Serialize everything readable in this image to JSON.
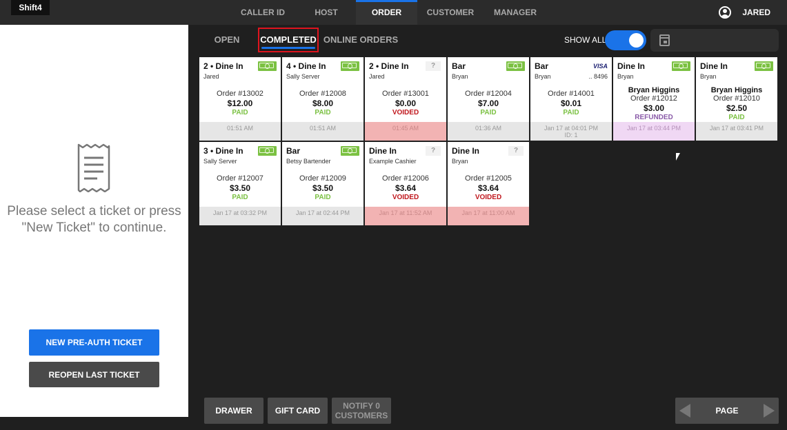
{
  "brand": {
    "label": "Shift4"
  },
  "nav": {
    "tabs": [
      {
        "label": "CALLER ID"
      },
      {
        "label": "HOST"
      },
      {
        "label": "ORDER"
      },
      {
        "label": "CUSTOMER"
      },
      {
        "label": "MANAGER"
      }
    ],
    "active": "ORDER",
    "user": "JARED"
  },
  "left_panel": {
    "message": "Please select a ticket or press \"New Ticket\" to continue.",
    "new_preauth_label": "NEW PRE-AUTH TICKET",
    "reopen_label": "REOPEN LAST TICKET"
  },
  "subtabs": {
    "items": [
      {
        "label": "OPEN"
      },
      {
        "label": "COMPLETED"
      },
      {
        "label": "ONLINE ORDERS"
      }
    ],
    "active": "COMPLETED",
    "show_all_label": "SHOW ALL",
    "show_all_on": true
  },
  "tickets": [
    {
      "title": "2 • Dine In",
      "server": "Jared",
      "payment": "cash",
      "customer": "",
      "order": "Order #13002",
      "total": "$12.00",
      "status": "PAID",
      "time": "01:51 AM",
      "id": ""
    },
    {
      "title": "4 • Dine In",
      "server": "Sally Server",
      "payment": "cash",
      "customer": "",
      "order": "Order #12008",
      "total": "$8.00",
      "status": "PAID",
      "time": "01:51 AM",
      "id": ""
    },
    {
      "title": "2 • Dine In",
      "server": "Jared",
      "payment": "unknown",
      "customer": "",
      "order": "Order #13001",
      "total": "$0.00",
      "status": "VOIDED",
      "time": "01:45 AM",
      "id": ""
    },
    {
      "title": "Bar",
      "server": "Bryan",
      "payment": "cash",
      "customer": "",
      "order": "Order #12004",
      "total": "$7.00",
      "status": "PAID",
      "time": "01:36 AM",
      "id": ""
    },
    {
      "title": "Bar",
      "server": "Bryan",
      "payment": "visa",
      "card_label": "VISA",
      "last4": ".. 8496",
      "customer": "",
      "order": "Order #14001",
      "total": "$0.01",
      "status": "PAID",
      "time": "Jan 17 at 04:01 PM",
      "id": "ID: 1"
    },
    {
      "title": "Dine In",
      "server": "Bryan",
      "payment": "cash",
      "customer": "Bryan Higgins",
      "order": "Order #12012",
      "total": "$3.00",
      "status": "REFUNDED",
      "time": "Jan 17 at 03:44 PM",
      "id": ""
    },
    {
      "title": "Dine In",
      "server": "Bryan",
      "payment": "cash",
      "customer": "Bryan Higgins",
      "order": "Order #12010",
      "total": "$2.50",
      "status": "PAID",
      "time": "Jan 17 at 03:41 PM",
      "id": ""
    },
    {
      "title": "3 • Dine In",
      "server": "Sally Server",
      "payment": "cash",
      "customer": "",
      "order": "Order #12007",
      "total": "$3.50",
      "status": "PAID",
      "time": "Jan 17 at 03:32 PM",
      "id": ""
    },
    {
      "title": "Bar",
      "server": "Betsy Bartender",
      "payment": "cash",
      "customer": "",
      "order": "Order #12009",
      "total": "$3.50",
      "status": "PAID",
      "time": "Jan 17 at 02:44 PM",
      "id": ""
    },
    {
      "title": "Dine In",
      "server": "Example Cashier",
      "payment": "unknown",
      "customer": "",
      "order": "Order #12006",
      "total": "$3.64",
      "status": "VOIDED",
      "time": "Jan 17 at 11:52 AM",
      "id": ""
    },
    {
      "title": "Dine In",
      "server": "Bryan",
      "payment": "unknown",
      "customer": "",
      "order": "Order #12005",
      "total": "$3.64",
      "status": "VOIDED",
      "time": "Jan 17 at 11:00 AM",
      "id": ""
    }
  ],
  "unknown_payment_glyph": "?",
  "bottom": {
    "drawer_label": "DRAWER",
    "gift_card_label": "GIFT CARD",
    "notify_label_line1": "NOTIFY 0",
    "notify_label_line2": "CUSTOMERS",
    "page_label": "PAGE"
  },
  "colors": {
    "accent": "#1a73e8",
    "paid": "#7bc142",
    "voided": "#c0161c",
    "refunded": "#8a5ba8",
    "highlight": "#e0141e"
  }
}
